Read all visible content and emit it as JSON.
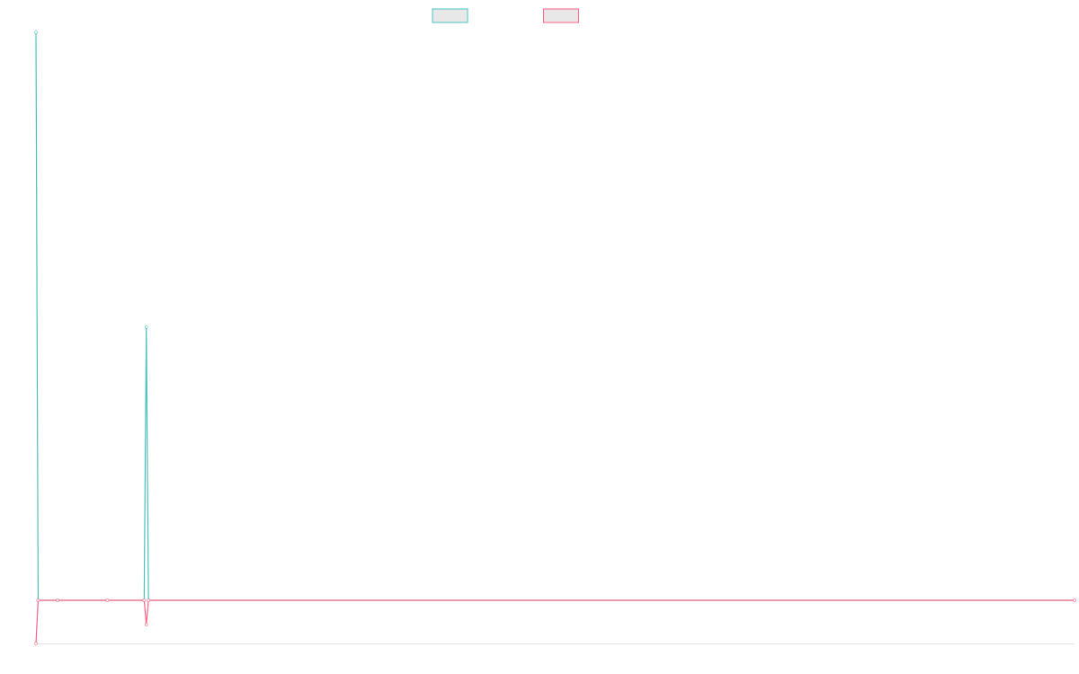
{
  "chart_data": {
    "type": "line",
    "x": [
      0,
      1,
      10,
      33,
      50,
      51,
      52,
      480
    ],
    "xlim": [
      0,
      480
    ],
    "ylim": [
      -48,
      632
    ],
    "series": [
      {
        "color": "#4bc0c0",
        "values": [
          632,
          0,
          0,
          0,
          0,
          304,
          0,
          0
        ]
      },
      {
        "color": "#ff6384",
        "values": [
          -48,
          0,
          0,
          0,
          0,
          -27,
          0,
          0
        ]
      }
    ]
  }
}
